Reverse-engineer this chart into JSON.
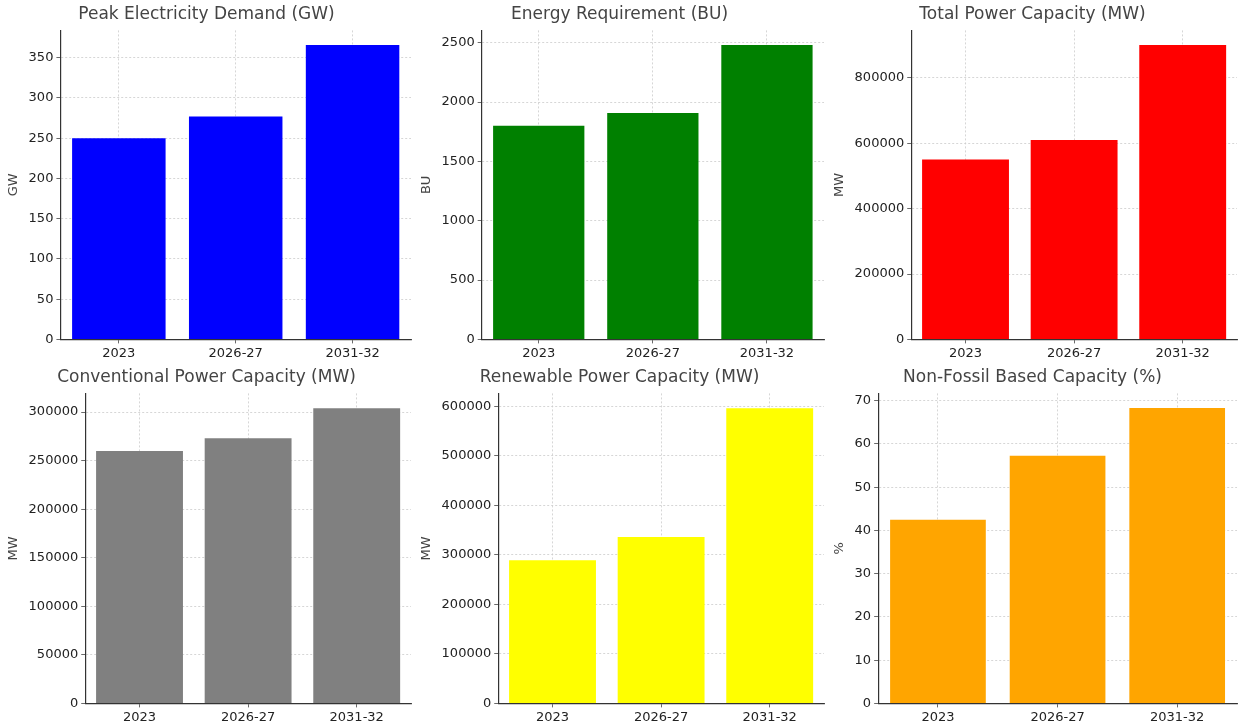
{
  "chart_data": [
    {
      "type": "bar",
      "title": "Peak Electricity Demand (GW)",
      "ylabel": "GW",
      "categories": [
        "2023",
        "2026-27",
        "2031-32"
      ],
      "values": [
        250,
        277,
        366
      ],
      "color": "#0000ff",
      "ylim": [
        0,
        384
      ],
      "yticks": [
        0,
        50,
        100,
        150,
        200,
        250,
        300,
        350
      ],
      "grid": true
    },
    {
      "type": "bar",
      "title": "Energy Requirement (BU)",
      "ylabel": "BU",
      "categories": [
        "2023",
        "2026-27",
        "2031-32"
      ],
      "values": [
        1800,
        1907,
        2480
      ],
      "color": "#008000",
      "ylim": [
        0,
        2604
      ],
      "yticks": [
        0,
        500,
        1000,
        1500,
        2000,
        2500
      ],
      "grid": true
    },
    {
      "type": "bar",
      "title": "Total Power Capacity (MW)",
      "ylabel": "MW",
      "categories": [
        "2023",
        "2026-27",
        "2031-32"
      ],
      "values": [
        550000,
        610000,
        900000
      ],
      "color": "#ff0000",
      "ylim": [
        0,
        945000
      ],
      "yticks": [
        0,
        200000,
        400000,
        600000,
        800000
      ],
      "grid": true
    },
    {
      "type": "bar",
      "title": "Conventional Power Capacity (MW)",
      "ylabel": "MW",
      "categories": [
        "2023",
        "2026-27",
        "2031-32"
      ],
      "values": [
        260000,
        273000,
        304000
      ],
      "color": "#808080",
      "ylim": [
        0,
        319200
      ],
      "yticks": [
        0,
        50000,
        100000,
        150000,
        200000,
        250000,
        300000
      ],
      "grid": true
    },
    {
      "type": "bar",
      "title": "Renewable Power Capacity (MW)",
      "ylabel": "MW",
      "categories": [
        "2023",
        "2026-27",
        "2031-32"
      ],
      "values": [
        289000,
        336000,
        596000
      ],
      "color": "#ffff00",
      "ylim": [
        0,
        625800
      ],
      "yticks": [
        0,
        100000,
        200000,
        300000,
        400000,
        500000,
        600000
      ],
      "grid": true
    },
    {
      "type": "bar",
      "title": "Non-Fossil Based Capacity (%)",
      "ylabel": "%",
      "categories": [
        "2023",
        "2026-27",
        "2031-32"
      ],
      "values": [
        42.5,
        57.3,
        68.3
      ],
      "color": "#ffa500",
      "ylim": [
        0,
        71.7
      ],
      "yticks": [
        0,
        10,
        20,
        30,
        40,
        50,
        60,
        70
      ],
      "grid": true
    }
  ]
}
